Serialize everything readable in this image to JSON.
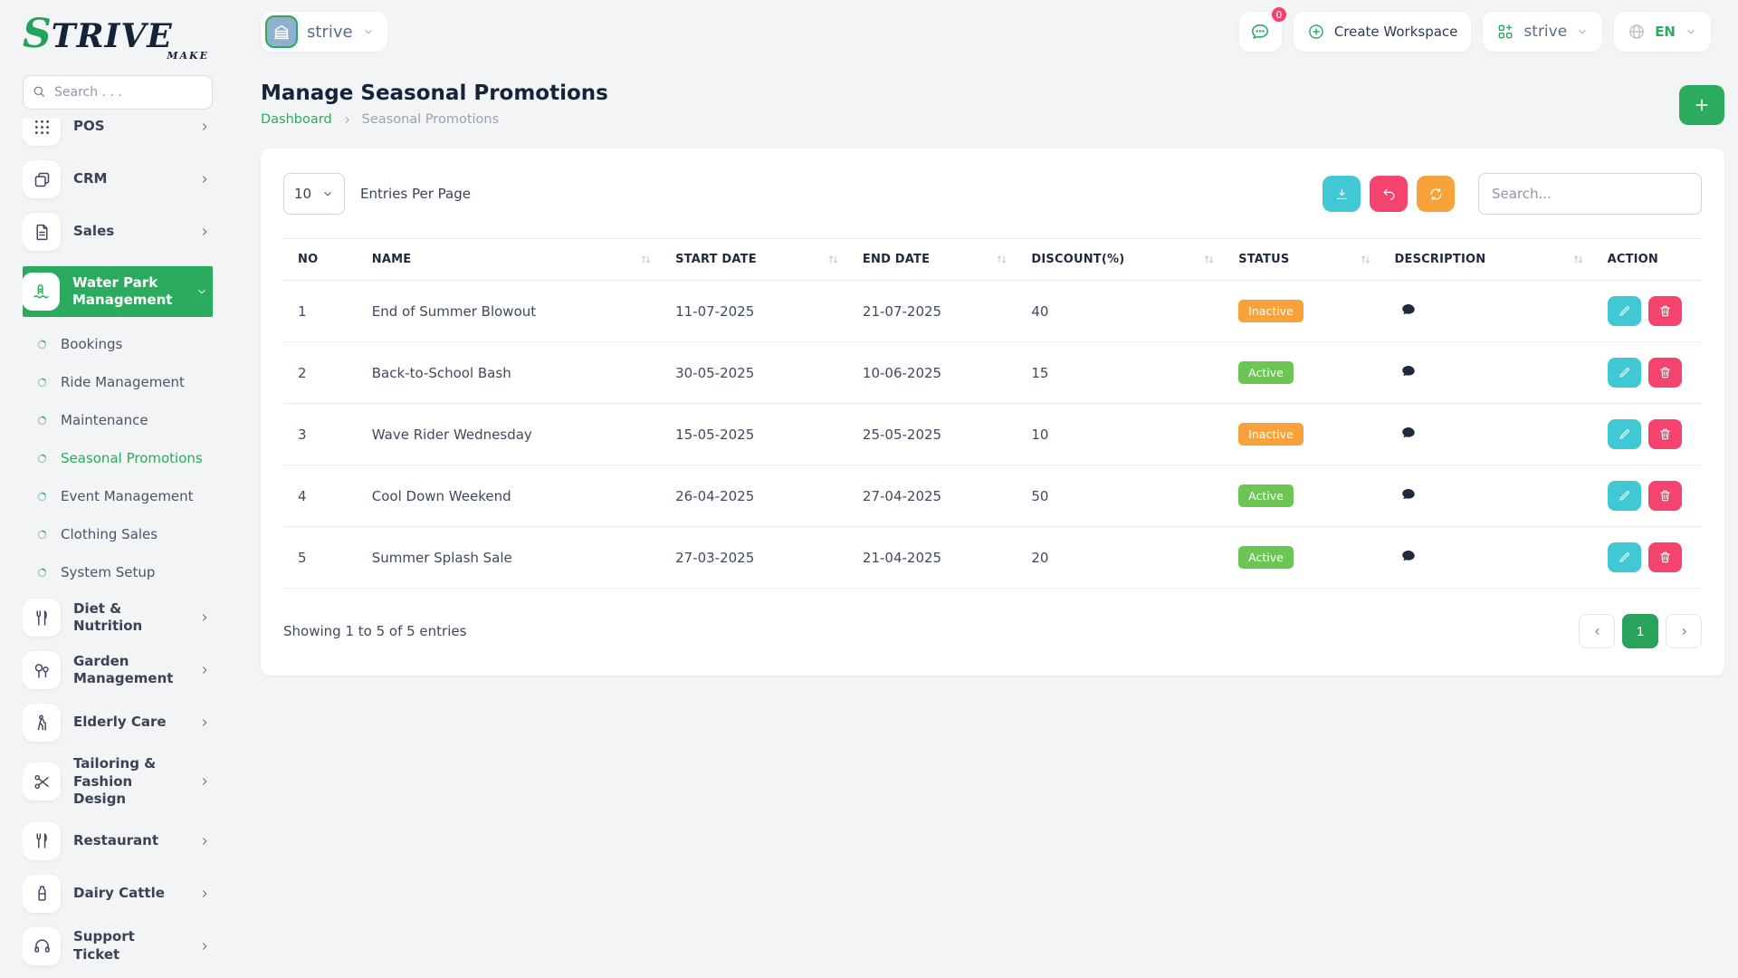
{
  "brand": {
    "name": "STRIVE",
    "sub": "MAKE"
  },
  "colors": {
    "accent_green": "#2aab5e",
    "badge_active": "#6bc653",
    "badge_inactive": "#f7a23b",
    "teal": "#41c8d5",
    "pink": "#f54370",
    "orange": "#f7a23b",
    "notification_red": "#f4406d"
  },
  "sidebar": {
    "search_placeholder": "Search . . .",
    "items": [
      {
        "label": "POS",
        "icon": "grid-dots-icon",
        "chevron": true
      },
      {
        "label": "CRM",
        "icon": "copy-icon",
        "chevron": true
      },
      {
        "label": "Sales",
        "icon": "document-icon",
        "chevron": true
      },
      {
        "label": "Water Park Management",
        "icon": "waterslide-icon",
        "active": true,
        "expanded": true,
        "children": [
          {
            "label": "Bookings"
          },
          {
            "label": "Ride Management"
          },
          {
            "label": "Maintenance"
          },
          {
            "label": "Seasonal Promotions",
            "active": true
          },
          {
            "label": "Event Management"
          },
          {
            "label": "Clothing Sales"
          },
          {
            "label": "System Setup"
          }
        ]
      },
      {
        "label": "Diet & Nutrition",
        "icon": "cutlery-icon",
        "chevron": true
      },
      {
        "label": "Garden Management",
        "icon": "trees-icon",
        "chevron": true
      },
      {
        "label": "Elderly Care",
        "icon": "elderly-icon",
        "chevron": true
      },
      {
        "label": "Tailoring & Fashion Design",
        "icon": "scissors-icon",
        "chevron": true
      },
      {
        "label": "Restaurant",
        "icon": "cutlery-icon",
        "chevron": true
      },
      {
        "label": "Dairy Cattle",
        "icon": "milk-bottle-icon",
        "chevron": true
      },
      {
        "label": "Support Ticket",
        "icon": "headset-icon",
        "chevron": true
      }
    ]
  },
  "header": {
    "workspace_name": "strive",
    "chat_badge": "0",
    "create_workspace_label": "Create Workspace",
    "switcher_name": "strive",
    "language": "EN"
  },
  "page": {
    "title": "Manage Seasonal Promotions",
    "breadcrumb": [
      "Dashboard",
      "Seasonal Promotions"
    ]
  },
  "table_card": {
    "entries_per_page_value": "10",
    "entries_per_page_label": "Entries Per Page",
    "search_placeholder": "Search...",
    "toolbar_icons": [
      "download-icon",
      "undo-icon",
      "refresh-icon"
    ],
    "columns": [
      {
        "label": "NO",
        "sortable": false,
        "cls": "c-no"
      },
      {
        "label": "NAME",
        "sortable": true,
        "cls": "c-name"
      },
      {
        "label": "START DATE",
        "sortable": true,
        "cls": "c-start"
      },
      {
        "label": "END DATE",
        "sortable": true,
        "cls": "c-end"
      },
      {
        "label": "DISCOUNT(%)",
        "sortable": true,
        "cls": "c-disc"
      },
      {
        "label": "STATUS",
        "sortable": true,
        "cls": "c-status"
      },
      {
        "label": "DESCRIPTION",
        "sortable": true,
        "cls": "c-desc"
      },
      {
        "label": "ACTION",
        "sortable": false,
        "cls": "c-act"
      }
    ],
    "rows": [
      {
        "no": "1",
        "name": "End of Summer Blowout",
        "start_date": "11-07-2025",
        "end_date": "21-07-2025",
        "discount": "40",
        "status": "Inactive"
      },
      {
        "no": "2",
        "name": "Back-to-School Bash",
        "start_date": "30-05-2025",
        "end_date": "10-06-2025",
        "discount": "15",
        "status": "Active"
      },
      {
        "no": "3",
        "name": "Wave Rider Wednesday",
        "start_date": "15-05-2025",
        "end_date": "25-05-2025",
        "discount": "10",
        "status": "Inactive"
      },
      {
        "no": "4",
        "name": "Cool Down Weekend",
        "start_date": "26-04-2025",
        "end_date": "27-04-2025",
        "discount": "50",
        "status": "Active"
      },
      {
        "no": "5",
        "name": "Summer Splash Sale",
        "start_date": "27-03-2025",
        "end_date": "21-04-2025",
        "discount": "20",
        "status": "Active"
      }
    ],
    "footer": {
      "showing_text": "Showing 1 to 5 of 5 entries",
      "current_page": "1"
    }
  }
}
